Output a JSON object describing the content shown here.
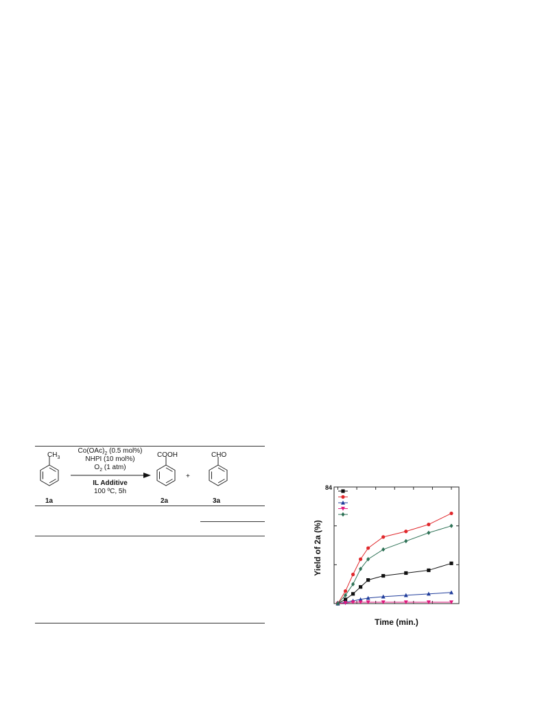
{
  "reaction": {
    "reactant": {
      "label": "1a",
      "substituent": "CH",
      "substituent_sub": "3"
    },
    "conditions": {
      "line1_pre": "Co(OAc)",
      "line1_sub": "2",
      "line1_post": " (0.5 mol%)",
      "line2": "NHPI (10 mol%)",
      "line3_pre": "O",
      "line3_sub": "2",
      "line3_post": " (1 atm)",
      "line4": "IL Additive",
      "line5": "100 ºC, 5h"
    },
    "product1": {
      "label": "2a",
      "substituent": "COOH"
    },
    "plus": "+",
    "product2": {
      "label": "3a",
      "substituent": "CHO"
    }
  },
  "chart_data": {
    "type": "line",
    "ylabel": "Yield of 2a (%)",
    "xlabel": "Time (min.)",
    "y_tick_labels": [
      "84"
    ],
    "ylim": [
      0,
      84
    ],
    "xlim": [
      -10,
      320
    ],
    "legend": {
      "placement": "top-left"
    },
    "x": [
      0,
      20,
      40,
      60,
      80,
      120,
      180,
      240,
      300
    ],
    "series": [
      {
        "color": "#111111",
        "marker": "square",
        "values": [
          0,
          3,
          7,
          12,
          17,
          20,
          22,
          24,
          29
        ]
      },
      {
        "color": "#e0282c",
        "marker": "circle",
        "values": [
          0,
          9,
          21,
          32,
          40,
          48,
          52,
          57,
          65
        ]
      },
      {
        "color": "#1f3c9b",
        "marker": "triangle-up",
        "values": [
          0,
          1,
          2,
          3,
          4,
          5,
          6,
          7,
          8
        ]
      },
      {
        "color": "#e0197d",
        "marker": "triangle-down",
        "values": [
          0,
          0.5,
          1,
          1,
          1,
          1,
          1,
          1,
          1
        ]
      },
      {
        "color": "#2e7256",
        "marker": "diamond",
        "values": [
          0,
          6,
          14,
          25,
          32,
          39,
          45,
          51,
          56
        ]
      }
    ]
  }
}
